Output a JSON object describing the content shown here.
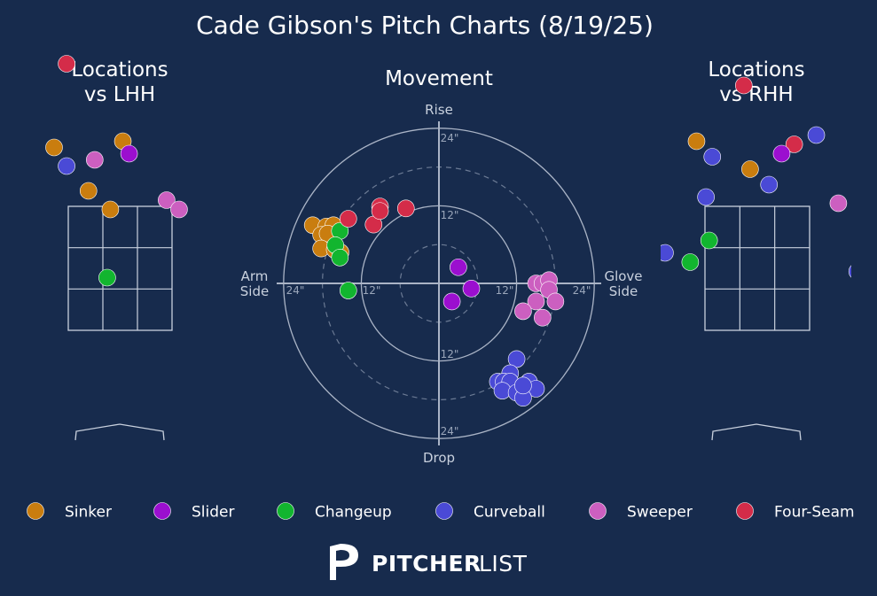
{
  "title": "Cade Gibson's Pitch Charts (8/19/25)",
  "brand": {
    "name_bold": "PITCHER",
    "name_light": "LIST"
  },
  "pitch_colors": {
    "Sinker": "#c97d0f",
    "Slider": "#9b0fcf",
    "Changeup": "#12b52f",
    "Curveball": "#4a4ad6",
    "Sweeper": "#cc5fc0",
    "Four-Seam": "#d42c49"
  },
  "legend": [
    "Sinker",
    "Slider",
    "Changeup",
    "Curveball",
    "Sweeper",
    "Four-Seam"
  ],
  "chart_data": [
    {
      "type": "scatter",
      "title": "Locations\nvs LHH",
      "grid": true,
      "points": [
        {
          "pitch": "Sinker",
          "x": -2.8,
          "y": 3.05
        },
        {
          "pitch": "Four-Seam",
          "x": -0.85,
          "y": 3.3
        },
        {
          "pitch": "Sinker",
          "x": -1.05,
          "y": 1.95
        },
        {
          "pitch": "Sinker",
          "x": 0.05,
          "y": 2.05
        },
        {
          "pitch": "Slider",
          "x": 0.15,
          "y": 1.85
        },
        {
          "pitch": "Sweeper",
          "x": -0.4,
          "y": 1.75
        },
        {
          "pitch": "Curveball",
          "x": -0.85,
          "y": 1.65
        },
        {
          "pitch": "Sinker",
          "x": -2.0,
          "y": 1.3
        },
        {
          "pitch": "Curveball",
          "x": -2.05,
          "y": 1.2
        },
        {
          "pitch": "Sinker",
          "x": -0.5,
          "y": 1.25
        },
        {
          "pitch": "Slider",
          "x": 2.0,
          "y": 1.3
        },
        {
          "pitch": "Sweeper",
          "x": 0.75,
          "y": 1.1
        },
        {
          "pitch": "Sweeper",
          "x": 0.95,
          "y": 0.95
        },
        {
          "pitch": "Sinker",
          "x": -0.15,
          "y": 0.95
        },
        {
          "pitch": "Sweeper",
          "x": 2.45,
          "y": 0.35
        },
        {
          "pitch": "Sinker",
          "x": -1.95,
          "y": 0.2
        },
        {
          "pitch": "Changeup",
          "x": -0.2,
          "y": -0.15
        }
      ]
    },
    {
      "type": "scatter",
      "title": "Movement",
      "xlabel_left": "Arm\nSide",
      "xlabel_right": "Glove\nSide",
      "ylabel_top": "Rise",
      "ylabel_bottom": "Drop",
      "ring_labels": [
        "24\"",
        "12\"",
        "12\"",
        "24\"",
        "24\"",
        "12\"",
        "12\"",
        "24\""
      ],
      "axis_range": [
        -24,
        24
      ],
      "points": [
        {
          "pitch": "Sinker",
          "x": -19.5,
          "y": 9.0
        },
        {
          "pitch": "Sinker",
          "x": -17.4,
          "y": 8.8
        },
        {
          "pitch": "Sinker",
          "x": -16.3,
          "y": 9.0
        },
        {
          "pitch": "Sinker",
          "x": -18.2,
          "y": 7.5
        },
        {
          "pitch": "Sinker",
          "x": -17.2,
          "y": 7.7
        },
        {
          "pitch": "Sinker",
          "x": -18.2,
          "y": 5.4
        },
        {
          "pitch": "Sinker",
          "x": -16.1,
          "y": 5.2
        },
        {
          "pitch": "Sinker",
          "x": -15.2,
          "y": 4.8
        },
        {
          "pitch": "Changeup",
          "x": -15.3,
          "y": 8.1
        },
        {
          "pitch": "Changeup",
          "x": -16.0,
          "y": 5.9
        },
        {
          "pitch": "Changeup",
          "x": -15.3,
          "y": 4.0
        },
        {
          "pitch": "Changeup",
          "x": -14.0,
          "y": -1.1
        },
        {
          "pitch": "Four-Seam",
          "x": -14.0,
          "y": 10.0
        },
        {
          "pitch": "Four-Seam",
          "x": -10.1,
          "y": 9.1
        },
        {
          "pitch": "Four-Seam",
          "x": -9.1,
          "y": 11.9
        },
        {
          "pitch": "Four-Seam",
          "x": -9.1,
          "y": 11.2
        },
        {
          "pitch": "Four-Seam",
          "x": -5.1,
          "y": 11.6
        },
        {
          "pitch": "Slider",
          "x": 3.0,
          "y": 2.5
        },
        {
          "pitch": "Slider",
          "x": 5.0,
          "y": -0.8
        },
        {
          "pitch": "Slider",
          "x": 2.0,
          "y": -2.8
        },
        {
          "pitch": "Sweeper",
          "x": 15.0,
          "y": 0.0
        },
        {
          "pitch": "Sweeper",
          "x": 16.0,
          "y": 0.0
        },
        {
          "pitch": "Sweeper",
          "x": 17.0,
          "y": 0.5
        },
        {
          "pitch": "Sweeper",
          "x": 17.0,
          "y": -1.0
        },
        {
          "pitch": "Sweeper",
          "x": 15.0,
          "y": -2.8
        },
        {
          "pitch": "Sweeper",
          "x": 13.0,
          "y": -4.3
        },
        {
          "pitch": "Sweeper",
          "x": 18.0,
          "y": -2.8
        },
        {
          "pitch": "Sweeper",
          "x": 16.0,
          "y": -5.3
        },
        {
          "pitch": "Curveball",
          "x": 12.0,
          "y": -11.7
        },
        {
          "pitch": "Curveball",
          "x": 11.0,
          "y": -13.9
        },
        {
          "pitch": "Curveball",
          "x": 9.1,
          "y": -15.2
        },
        {
          "pitch": "Curveball",
          "x": 10.0,
          "y": -15.2
        },
        {
          "pitch": "Curveball",
          "x": 11.0,
          "y": -15.2
        },
        {
          "pitch": "Curveball",
          "x": 9.8,
          "y": -16.6
        },
        {
          "pitch": "Curveball",
          "x": 12.0,
          "y": -16.9
        },
        {
          "pitch": "Curveball",
          "x": 13.9,
          "y": -15.2
        },
        {
          "pitch": "Curveball",
          "x": 15.0,
          "y": -16.3
        },
        {
          "pitch": "Curveball",
          "x": 13.0,
          "y": -17.7
        },
        {
          "pitch": "Curveball",
          "x": 13.0,
          "y": -15.8
        }
      ]
    },
    {
      "type": "scatter",
      "title": "Locations\nvs RHH",
      "grid": true,
      "points": [
        {
          "pitch": "Four-Seam",
          "x": -2.3,
          "y": 3.7
        },
        {
          "pitch": "Changeup",
          "x": -1.9,
          "y": 2.75
        },
        {
          "pitch": "Four-Seam",
          "x": -0.2,
          "y": 2.95
        },
        {
          "pitch": "Sinker",
          "x": -0.95,
          "y": 2.05
        },
        {
          "pitch": "Curveball",
          "x": 0.95,
          "y": 2.15
        },
        {
          "pitch": "Four-Seam",
          "x": 0.6,
          "y": 2.0
        },
        {
          "pitch": "Slider",
          "x": 0.4,
          "y": 1.85
        },
        {
          "pitch": "Curveball",
          "x": -0.7,
          "y": 1.8
        },
        {
          "pitch": "Sinker",
          "x": -0.1,
          "y": 1.6
        },
        {
          "pitch": "Curveball",
          "x": 0.2,
          "y": 1.35
        },
        {
          "pitch": "Curveball",
          "x": -0.8,
          "y": 1.15
        },
        {
          "pitch": "Sweeper",
          "x": 1.3,
          "y": 1.05
        },
        {
          "pitch": "Changeup",
          "x": -0.75,
          "y": 0.45
        },
        {
          "pitch": "Curveball",
          "x": -1.45,
          "y": 0.25
        },
        {
          "pitch": "Changeup",
          "x": -1.05,
          "y": 0.1
        },
        {
          "pitch": "Sweeper",
          "x": 2.9,
          "y": 0.2
        },
        {
          "pitch": "Curveball",
          "x": 1.6,
          "y": -0.05
        },
        {
          "pitch": "Sweeper",
          "x": 2.3,
          "y": -0.6
        },
        {
          "pitch": "Curveball",
          "x": 3.2,
          "y": -0.55
        }
      ]
    }
  ]
}
